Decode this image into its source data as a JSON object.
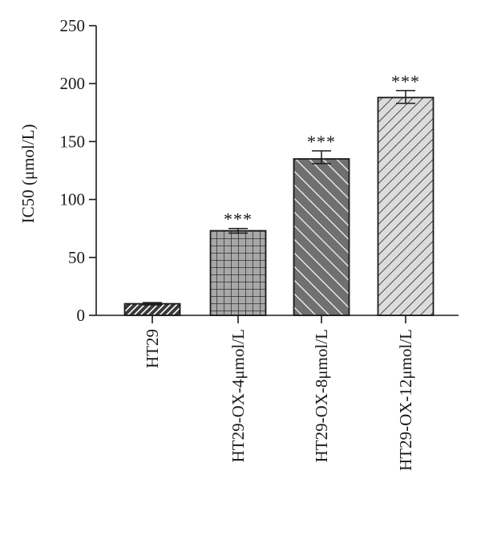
{
  "chart_data": {
    "type": "bar",
    "ylabel": "IC50 (μmol/L)",
    "ylim": [
      0,
      250
    ],
    "yticks": [
      0,
      50,
      100,
      150,
      200,
      250
    ],
    "categories": [
      "HT29",
      "HT29-OX-4μmol/L",
      "HT29-OX-8μmol/L",
      "HT29-OX-12μmol/L"
    ],
    "values": [
      10,
      73,
      135,
      188
    ],
    "error_plus": [
      1,
      2,
      7,
      6
    ],
    "error_minus": [
      1,
      2,
      4,
      5
    ],
    "significance": [
      "",
      "***",
      "***",
      "***"
    ],
    "patterns": [
      "brick-hatch",
      "grid",
      "diagonal-white-lines",
      "diagonal-dark-lines"
    ],
    "colors": {
      "stroke": "#1a1a1a",
      "grid_fill": "#a8a8a8",
      "hatch_dark": "#707070",
      "hatch_light": "#dcdcdc"
    },
    "grid": false,
    "legend": "none"
  }
}
